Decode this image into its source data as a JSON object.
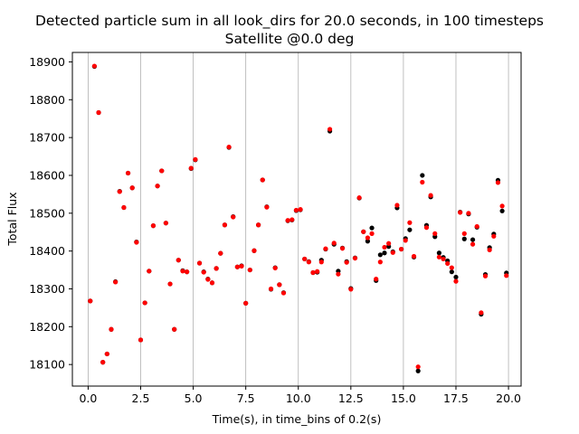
{
  "chart_data": {
    "type": "scatter",
    "title": "Detected particle sum in all look_dirs for 20.0 seconds, in 100 timesteps",
    "subtitle": "Satellite @0.0 deg",
    "xlabel": "Time(s), in time_bins of 0.2(s)",
    "ylabel": "Total Flux",
    "xlim": [
      -0.75,
      20.6
    ],
    "ylim": [
      18043,
      18925
    ],
    "xticks": [
      0.0,
      2.5,
      5.0,
      7.5,
      10.0,
      12.5,
      15.0,
      17.5,
      20.0
    ],
    "xtick_labels": [
      "0.0",
      "2.5",
      "5.0",
      "7.5",
      "10.0",
      "12.5",
      "15.0",
      "17.5",
      "20.0"
    ],
    "yticks": [
      18100,
      18200,
      18300,
      18400,
      18500,
      18600,
      18700,
      18800,
      18900
    ],
    "ytick_labels": [
      "18100",
      "18200",
      "18300",
      "18400",
      "18500",
      "18600",
      "18700",
      "18800",
      "18900"
    ],
    "grid": "vertical",
    "colors": {
      "series_black": "#000000",
      "series_red": "#ff0000"
    },
    "x": [
      0.1,
      0.3,
      0.5,
      0.7,
      0.9,
      1.1,
      1.3,
      1.5,
      1.7,
      1.9,
      2.1,
      2.3,
      2.5,
      2.7,
      2.9,
      3.1,
      3.3,
      3.5,
      3.7,
      3.9,
      4.1,
      4.3,
      4.5,
      4.7,
      4.9,
      5.1,
      5.3,
      5.5,
      5.7,
      5.9,
      6.1,
      6.3,
      6.5,
      6.7,
      6.9,
      7.1,
      7.3,
      7.5,
      7.7,
      7.9,
      8.1,
      8.3,
      8.5,
      8.7,
      8.9,
      9.1,
      9.3,
      9.5,
      9.7,
      9.9,
      10.1,
      10.3,
      10.5,
      10.7,
      10.9,
      11.1,
      11.3,
      11.5,
      11.7,
      11.9,
      12.1,
      12.3,
      12.5,
      12.7,
      12.9,
      13.1,
      13.3,
      13.5,
      13.7,
      13.9,
      14.1,
      14.3,
      14.5,
      14.7,
      14.9,
      15.1,
      15.3,
      15.5,
      15.7,
      15.9,
      16.1,
      16.3,
      16.5,
      16.7,
      16.9,
      17.1,
      17.3,
      17.5,
      17.7,
      17.9,
      18.1,
      18.3,
      18.5,
      18.7,
      18.9,
      19.1,
      19.3,
      19.5,
      19.7,
      19.9
    ],
    "series": [
      {
        "values": [
          18268,
          18888,
          18766,
          18106,
          18128,
          18193,
          18319,
          18558,
          18515,
          18606,
          18567,
          18424,
          18165,
          18263,
          18347,
          18467,
          18572,
          18612,
          18474,
          18313,
          18193,
          18376,
          18348,
          18345,
          18618,
          18641,
          18368,
          18345,
          18326,
          18316,
          18354,
          18394,
          18469,
          18674,
          18491,
          18358,
          18361,
          18262,
          18350,
          18401,
          18469,
          18588,
          18517,
          18299,
          18356,
          18311,
          18290,
          18480,
          18482,
          18507,
          18509,
          18379,
          18372,
          18343,
          18344,
          18376,
          18405,
          18717,
          18418,
          18347,
          18408,
          18372,
          18301,
          18382,
          18540,
          18451,
          18426,
          18461,
          18322,
          18390,
          18395,
          18412,
          18398,
          18514,
          18405,
          18433,
          18456,
          18384,
          18083,
          18600,
          18468,
          18543,
          18438,
          18395,
          18383,
          18374,
          18345,
          18331,
          18503,
          18432,
          18498,
          18430,
          18463,
          18233,
          18338,
          18409,
          18445,
          18587,
          18506,
          18342
        ]
      },
      {
        "values": [
          18268,
          18889,
          18766,
          18106,
          18128,
          18193,
          18318,
          18557,
          18515,
          18606,
          18567,
          18423,
          18165,
          18263,
          18347,
          18467,
          18572,
          18612,
          18474,
          18313,
          18193,
          18376,
          18347,
          18345,
          18619,
          18642,
          18368,
          18344,
          18325,
          18316,
          18354,
          18394,
          18469,
          18675,
          18490,
          18358,
          18360,
          18262,
          18350,
          18401,
          18469,
          18588,
          18516,
          18300,
          18355,
          18311,
          18289,
          18481,
          18483,
          18508,
          18510,
          18379,
          18371,
          18343,
          18346,
          18371,
          18406,
          18722,
          18421,
          18339,
          18407,
          18370,
          18299,
          18381,
          18541,
          18451,
          18435,
          18446,
          18326,
          18371,
          18410,
          18420,
          18396,
          18521,
          18405,
          18428,
          18475,
          18386,
          18094,
          18582,
          18462,
          18547,
          18446,
          18384,
          18379,
          18367,
          18356,
          18320,
          18502,
          18446,
          18500,
          18418,
          18465,
          18237,
          18334,
          18403,
          18439,
          18581,
          18519,
          18335
        ]
      }
    ]
  }
}
